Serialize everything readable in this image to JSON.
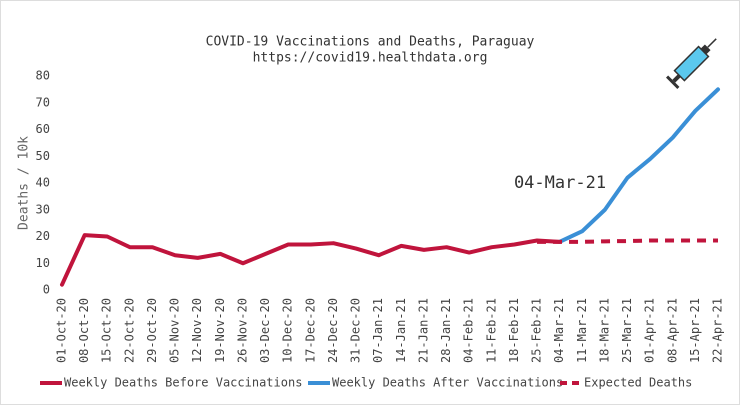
{
  "chart_data": {
    "type": "line",
    "title": "COVID-19 Vaccinations and Deaths, Paraguay",
    "subtitle": "https://covid19.healthdata.org",
    "y_label": "Deaths / 10k",
    "annotation": "04-Mar-21",
    "categories": [
      "01-Oct-20",
      "08-Oct-20",
      "15-Oct-20",
      "22-Oct-20",
      "29-Oct-20",
      "05-Nov-20",
      "12-Nov-20",
      "19-Nov-20",
      "26-Nov-20",
      "03-Dec-20",
      "10-Dec-20",
      "17-Dec-20",
      "24-Dec-20",
      "31-Dec-20",
      "07-Jan-21",
      "14-Jan-21",
      "21-Jan-21",
      "28-Jan-21",
      "04-Feb-21",
      "11-Feb-21",
      "18-Feb-21",
      "25-Feb-21",
      "04-Mar-21",
      "11-Mar-21",
      "18-Mar-21",
      "25-Mar-21",
      "01-Apr-21",
      "08-Apr-21",
      "15-Apr-21",
      "22-Apr-21"
    ],
    "series": [
      {
        "name": "Weekly Deaths Before Vaccinations",
        "color": "#c0143c",
        "dash": false,
        "values": [
          2,
          20.5,
          20,
          16,
          16,
          13,
          12,
          13.5,
          10,
          13.5,
          17,
          17,
          17.5,
          15.5,
          13,
          16.5,
          15,
          16,
          14,
          16,
          17,
          18.5,
          18,
          null,
          null,
          null,
          null,
          null,
          null,
          null
        ]
      },
      {
        "name": "Weekly Deaths After Vaccinations",
        "color": "#3a8fd6",
        "dash": false,
        "values": [
          null,
          null,
          null,
          null,
          null,
          null,
          null,
          null,
          null,
          null,
          null,
          null,
          null,
          null,
          null,
          null,
          null,
          null,
          null,
          null,
          null,
          null,
          18,
          22,
          30,
          42,
          49,
          57,
          67,
          75
        ]
      },
      {
        "name": "Expected Deaths",
        "color": "#c0143c",
        "dash": true,
        "values": [
          null,
          null,
          null,
          null,
          null,
          null,
          null,
          null,
          null,
          null,
          null,
          null,
          null,
          null,
          null,
          null,
          null,
          null,
          null,
          null,
          null,
          18,
          18,
          18,
          18.2,
          18.3,
          18.5,
          18.5,
          18.5,
          18.5
        ]
      }
    ],
    "ylim": [
      0,
      80
    ],
    "yticks": [
      0,
      10,
      20,
      30,
      40,
      50,
      60,
      70,
      80
    ],
    "grid": false
  }
}
